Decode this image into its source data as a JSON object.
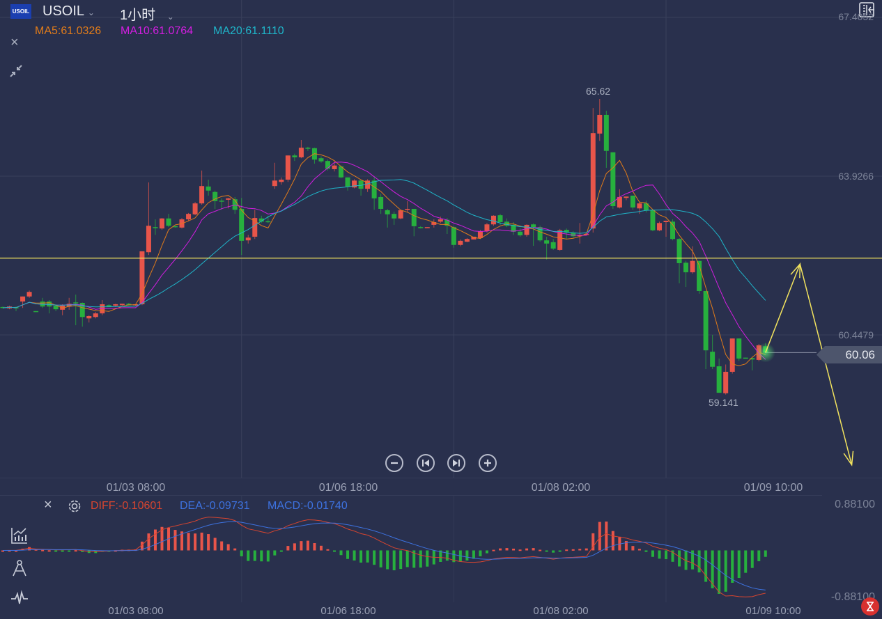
{
  "header": {
    "logo_text": "USOIL",
    "symbol": "USOIL",
    "timeframe": "1小时",
    "ma5_label": "MA5:61.0326",
    "ma10_label": "MA10:61.0764",
    "ma20_label": "MA20:61.1110"
  },
  "colors": {
    "background": "#29304d",
    "up": "#e8554a",
    "down": "#27b03e",
    "ma5": "#e07b1a",
    "ma10": "#d21ee0",
    "ma20": "#1fb5c9",
    "annotation": "#f2e35e",
    "diff": "#d8452f",
    "dea": "#3d72e0"
  },
  "price_axis": [
    "67.4052",
    "63.9266",
    "60.4479"
  ],
  "current_price": "60.06",
  "high_marker": "65.62",
  "low_marker": "59.141",
  "x_axis": [
    {
      "index": 20,
      "label": "01/03 08:00"
    },
    {
      "index": 52,
      "label": "01/06 18:00"
    },
    {
      "index": 84,
      "label": "01/08 02:00"
    },
    {
      "index": 116,
      "label": "01/09 10:00"
    }
  ],
  "macd_panel": {
    "diff_label": "DIFF:-0.10601",
    "dea_label": "DEA:-0.09731",
    "macd_label": "MACD:-0.01740",
    "axis_max": "0.88100",
    "axis_min": "-0.88100"
  },
  "controls": {
    "zoom_out": "zoom-out",
    "step_back": "step-back",
    "step_forward": "step-forward",
    "zoom_in": "zoom-in"
  },
  "chart_data": {
    "type": "candlestick",
    "symbol": "USOIL",
    "interval": "1h",
    "ylim": [
      57.3,
      67.79
    ],
    "price_ticks": [
      67.4052,
      63.9266,
      60.4479
    ],
    "ma_periods": [
      5,
      10,
      20
    ],
    "horizontal_line": 62.13,
    "annotation_path": [
      [
        115,
        60.06
      ],
      [
        120.2,
        62.0
      ],
      [
        128,
        57.6
      ]
    ],
    "candles_ohlc": [
      [
        61.06,
        61.07,
        61.03,
        61.04
      ],
      [
        61.03,
        61.09,
        61.01,
        61.07
      ],
      [
        61.06,
        61.07,
        60.97,
        61.03
      ],
      [
        61.18,
        61.29,
        61.04,
        61.29
      ],
      [
        61.29,
        61.42,
        61.26,
        61.39
      ],
      [
        60.97,
        60.97,
        60.95,
        60.95
      ],
      [
        61.18,
        61.26,
        61.04,
        61.07
      ],
      [
        61.18,
        61.21,
        60.92,
        61.07
      ],
      [
        61.09,
        61.12,
        60.97,
        61.01
      ],
      [
        61.0,
        61.12,
        60.88,
        61.09
      ],
      [
        61.07,
        61.26,
        61.0,
        61.13
      ],
      [
        61.16,
        61.33,
        60.66,
        61.15
      ],
      [
        61.15,
        61.16,
        60.63,
        60.84
      ],
      [
        60.81,
        60.88,
        60.72,
        60.86
      ],
      [
        60.84,
        60.95,
        60.81,
        60.92
      ],
      [
        60.92,
        61.21,
        60.88,
        61.12
      ],
      [
        61.1,
        61.12,
        61.06,
        61.07
      ],
      [
        61.09,
        61.13,
        61.07,
        61.12
      ],
      [
        61.1,
        61.13,
        61.09,
        61.13
      ],
      [
        61.13,
        61.15,
        61.09,
        61.1
      ],
      [
        61.1,
        61.13,
        61.09,
        61.12
      ],
      [
        61.12,
        62.28,
        61.1,
        62.28
      ],
      [
        62.26,
        63.79,
        62.2,
        62.84
      ],
      [
        62.81,
        62.98,
        62.64,
        62.8
      ],
      [
        62.78,
        63.01,
        62.75,
        63.0
      ],
      [
        63.0,
        63.1,
        62.81,
        62.84
      ],
      [
        62.83,
        62.84,
        62.8,
        62.81
      ],
      [
        62.8,
        63.01,
        62.78,
        62.98
      ],
      [
        62.98,
        63.12,
        62.95,
        63.1
      ],
      [
        63.09,
        63.36,
        63.07,
        63.33
      ],
      [
        63.33,
        64.05,
        63.3,
        63.71
      ],
      [
        63.7,
        63.85,
        63.5,
        63.61
      ],
      [
        63.58,
        63.61,
        63.21,
        63.38
      ],
      [
        63.39,
        63.44,
        63.19,
        63.38
      ],
      [
        63.41,
        63.45,
        63.22,
        63.44
      ],
      [
        63.42,
        63.47,
        63.1,
        63.19
      ],
      [
        63.21,
        63.45,
        62.2,
        62.51
      ],
      [
        62.52,
        62.64,
        62.45,
        62.58
      ],
      [
        62.6,
        63.19,
        62.55,
        63.01
      ],
      [
        63.0,
        63.06,
        62.9,
        62.93
      ],
      [
        62.94,
        63.06,
        62.9,
        62.93
      ],
      [
        63.71,
        64.22,
        63.65,
        63.83
      ],
      [
        63.8,
        63.9,
        63.74,
        63.85
      ],
      [
        63.85,
        64.38,
        63.8,
        64.38
      ],
      [
        64.38,
        64.42,
        64.26,
        64.34
      ],
      [
        64.34,
        64.72,
        64.32,
        64.55
      ],
      [
        64.55,
        64.57,
        64.48,
        64.54
      ],
      [
        64.54,
        64.55,
        64.2,
        64.29
      ],
      [
        64.32,
        64.36,
        64.22,
        64.25
      ],
      [
        64.26,
        64.29,
        64.05,
        64.09
      ],
      [
        64.08,
        64.25,
        64.03,
        64.16
      ],
      [
        64.14,
        64.16,
        63.88,
        63.9
      ],
      [
        63.9,
        63.9,
        63.61,
        63.7
      ],
      [
        63.68,
        63.86,
        63.66,
        63.83
      ],
      [
        63.83,
        63.85,
        63.5,
        63.65
      ],
      [
        63.65,
        63.86,
        63.58,
        63.83
      ],
      [
        63.83,
        63.9,
        63.19,
        63.44
      ],
      [
        63.47,
        63.54,
        63.1,
        63.21
      ],
      [
        63.18,
        63.21,
        62.8,
        63.09
      ],
      [
        63.1,
        63.15,
        62.86,
        63.0
      ],
      [
        63.0,
        63.19,
        62.98,
        63.18
      ],
      [
        63.19,
        63.38,
        63.13,
        63.21
      ],
      [
        63.21,
        63.21,
        62.61,
        62.83
      ],
      [
        62.81,
        62.83,
        62.78,
        62.8
      ],
      [
        62.8,
        62.81,
        62.8,
        62.81
      ],
      [
        62.86,
        62.98,
        62.8,
        62.92
      ],
      [
        62.93,
        63.04,
        62.9,
        62.98
      ],
      [
        62.97,
        63.01,
        62.66,
        62.84
      ],
      [
        62.81,
        62.83,
        62.36,
        62.42
      ],
      [
        62.42,
        62.54,
        62.39,
        62.51
      ],
      [
        62.49,
        62.57,
        62.48,
        62.55
      ],
      [
        62.54,
        62.6,
        62.54,
        62.6
      ],
      [
        62.57,
        62.75,
        62.55,
        62.72
      ],
      [
        62.72,
        62.9,
        62.69,
        62.87
      ],
      [
        62.87,
        63.07,
        62.84,
        63.06
      ],
      [
        63.07,
        63.1,
        62.86,
        62.92
      ],
      [
        62.93,
        63.0,
        62.81,
        62.84
      ],
      [
        62.86,
        62.92,
        62.64,
        62.71
      ],
      [
        62.71,
        62.78,
        62.6,
        62.63
      ],
      [
        62.64,
        62.87,
        62.6,
        62.86
      ],
      [
        62.87,
        62.89,
        62.4,
        62.81
      ],
      [
        62.81,
        62.84,
        62.49,
        62.52
      ],
      [
        62.52,
        62.6,
        62.1,
        62.45
      ],
      [
        62.48,
        62.55,
        62.31,
        62.34
      ],
      [
        62.31,
        62.77,
        62.29,
        62.74
      ],
      [
        62.75,
        62.78,
        62.55,
        62.69
      ],
      [
        62.69,
        62.72,
        62.57,
        62.61
      ],
      [
        62.61,
        62.9,
        62.45,
        62.64
      ],
      [
        62.64,
        62.67,
        62.63,
        62.66
      ],
      [
        62.78,
        65.42,
        62.69,
        64.87
      ],
      [
        64.86,
        65.62,
        64.7,
        65.27
      ],
      [
        65.27,
        65.36,
        64.11,
        64.48
      ],
      [
        64.45,
        64.45,
        63.21,
        63.27
      ],
      [
        63.24,
        63.64,
        63.22,
        63.47
      ],
      [
        63.45,
        63.48,
        63.4,
        63.48
      ],
      [
        63.5,
        63.5,
        63.19,
        63.24
      ],
      [
        63.22,
        63.36,
        63.1,
        63.33
      ],
      [
        63.33,
        63.39,
        63.13,
        63.18
      ],
      [
        63.18,
        63.19,
        62.72,
        62.74
      ],
      [
        62.74,
        62.93,
        62.72,
        62.9
      ],
      [
        62.92,
        62.95,
        62.6,
        62.95
      ],
      [
        62.93,
        62.98,
        62.52,
        62.55
      ],
      [
        62.55,
        62.57,
        61.58,
        62.02
      ],
      [
        62.03,
        62.07,
        61.5,
        61.82
      ],
      [
        61.82,
        62.39,
        61.79,
        62.07
      ],
      [
        62.07,
        62.07,
        61.35,
        61.41
      ],
      [
        61.41,
        61.41,
        59.7,
        60.11
      ],
      [
        60.08,
        60.45,
        59.7,
        59.75
      ],
      [
        59.76,
        59.93,
        59.18,
        59.18
      ],
      [
        59.17,
        59.8,
        59.141,
        59.64
      ],
      [
        59.64,
        60.37,
        59.6,
        60.37
      ],
      [
        60.37,
        60.37,
        59.88,
        59.93
      ],
      [
        59.95,
        59.95,
        59.94,
        59.94
      ],
      [
        59.94,
        59.95,
        59.67,
        59.91
      ],
      [
        59.9,
        60.25,
        59.87,
        60.22
      ],
      [
        60.2,
        60.27,
        60.05,
        60.06
      ]
    ]
  }
}
